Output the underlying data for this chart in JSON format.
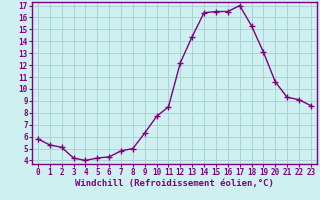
{
  "x": [
    0,
    1,
    2,
    3,
    4,
    5,
    6,
    7,
    8,
    9,
    10,
    11,
    12,
    13,
    14,
    15,
    16,
    17,
    18,
    19,
    20,
    21,
    22,
    23
  ],
  "y": [
    5.8,
    5.3,
    5.1,
    4.2,
    4.0,
    4.2,
    4.3,
    4.8,
    5.0,
    6.3,
    7.7,
    8.5,
    12.2,
    14.4,
    16.4,
    16.5,
    16.5,
    17.0,
    15.3,
    13.1,
    10.6,
    9.3,
    9.1,
    8.6
  ],
  "line_color": "#800080",
  "marker": "+",
  "marker_size": 4,
  "marker_lw": 1.0,
  "line_width": 1.0,
  "bg_color": "#cff0f0",
  "grid_color": "#aad4d4",
  "xlabel": "Windchill (Refroidissement éolien,°C)",
  "xlabel_color": "#800080",
  "ylim_min": 3.7,
  "ylim_max": 17.3,
  "xlim_min": -0.5,
  "xlim_max": 23.5,
  "yticks": [
    4,
    5,
    6,
    7,
    8,
    9,
    10,
    11,
    12,
    13,
    14,
    15,
    16,
    17
  ],
  "xticks": [
    0,
    1,
    2,
    3,
    4,
    5,
    6,
    7,
    8,
    9,
    10,
    11,
    12,
    13,
    14,
    15,
    16,
    17,
    18,
    19,
    20,
    21,
    22,
    23
  ],
  "tick_color": "#800080",
  "tick_labelsize": 5.5,
  "xlabel_fontsize": 6.5,
  "axis_color": "#800080",
  "spine_lw": 1.0
}
